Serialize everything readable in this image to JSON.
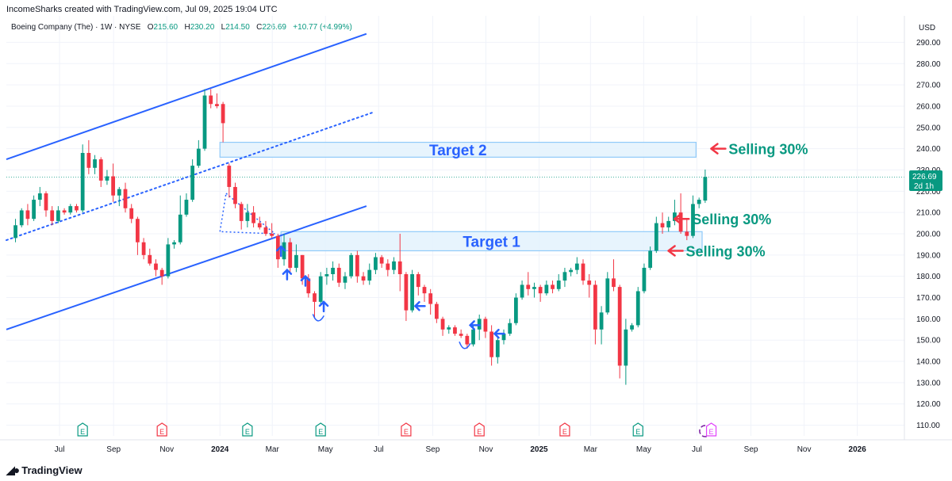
{
  "header": {
    "credit": "IncomeSharks created with TradingView.com, Jul 09, 2025 19:04 UTC"
  },
  "symbol": {
    "name": "Boeing Company (The) · 1W · NYSE",
    "open_label": "O",
    "open": "215.60",
    "high_label": "H",
    "high": "230.20",
    "low_label": "L",
    "low": "214.50",
    "close_label": "C",
    "close": "226.69",
    "change": "+10.77 (+4.99%)"
  },
  "currency": "USD",
  "price_tag": {
    "price": "226.69",
    "countdown": "2d 1h"
  },
  "footer": {
    "brand": "TradingView"
  },
  "colors": {
    "up": "#089981",
    "down": "#f23645",
    "channel": "#2962ff",
    "target_fill": "#e3f2fd",
    "target_border": "#90caf9",
    "annotation_blue": "#2962ff",
    "annotation_green": "#089981",
    "arrow_red": "#f23645"
  },
  "chart_data": {
    "type": "candlestick",
    "title": "Boeing Company (The) · 1W · NYSE",
    "y_axis": {
      "ylim": [
        105,
        295
      ],
      "ticks": [
        110,
        120,
        130,
        140,
        150,
        160,
        170,
        180,
        190,
        200,
        210,
        220,
        230,
        240,
        250,
        260,
        270,
        280,
        290
      ],
      "tick_labels": [
        "110.00",
        "120.00",
        "130.00",
        "140.00",
        "150.00",
        "160.00",
        "170.00",
        "180.00",
        "190.00",
        "200.00",
        "210.00",
        "220.00",
        "230.00",
        "240.00",
        "250.00",
        "260.00",
        "270.00",
        "280.00",
        "290.00"
      ],
      "side": "right"
    },
    "x_axis": {
      "tick_labels": [
        "Jul",
        "Sep",
        "Nov",
        "2024",
        "Mar",
        "May",
        "Jul",
        "Sep",
        "Nov",
        "2025",
        "Mar",
        "May",
        "Jul",
        "Sep",
        "Nov",
        "2026"
      ],
      "tick_dates": [
        "2023-07-01",
        "2023-09-01",
        "2023-11-01",
        "2024-01-01",
        "2024-03-01",
        "2024-05-01",
        "2024-07-01",
        "2024-09-01",
        "2024-11-01",
        "2025-01-01",
        "2025-03-01",
        "2025-05-01",
        "2025-07-01",
        "2025-09-01",
        "2025-11-01",
        "2026-01-01"
      ],
      "bold_labels": [
        "2024",
        "2025",
        "2026"
      ]
    },
    "candles": [
      {
        "d": "2023-05-08",
        "o": 198,
        "h": 207,
        "l": 196,
        "c": 204
      },
      {
        "d": "2023-05-15",
        "o": 204,
        "h": 212,
        "l": 203,
        "c": 211
      },
      {
        "d": "2023-05-22",
        "o": 211,
        "h": 214,
        "l": 204,
        "c": 207
      },
      {
        "d": "2023-05-29",
        "o": 207,
        "h": 218,
        "l": 206,
        "c": 216
      },
      {
        "d": "2023-06-05",
        "o": 216,
        "h": 222,
        "l": 213,
        "c": 219
      },
      {
        "d": "2023-06-12",
        "o": 219,
        "h": 220,
        "l": 208,
        "c": 211
      },
      {
        "d": "2023-06-19",
        "o": 211,
        "h": 213,
        "l": 204,
        "c": 206
      },
      {
        "d": "2023-06-26",
        "o": 206,
        "h": 213,
        "l": 205,
        "c": 211
      },
      {
        "d": "2023-07-03",
        "o": 211,
        "h": 212,
        "l": 209,
        "c": 210
      },
      {
        "d": "2023-07-10",
        "o": 210,
        "h": 214,
        "l": 209,
        "c": 213
      },
      {
        "d": "2023-07-17",
        "o": 213,
        "h": 214,
        "l": 210,
        "c": 211
      },
      {
        "d": "2023-07-24",
        "o": 211,
        "h": 242,
        "l": 210,
        "c": 238
      },
      {
        "d": "2023-07-31",
        "o": 238,
        "h": 244,
        "l": 228,
        "c": 231
      },
      {
        "d": "2023-08-07",
        "o": 231,
        "h": 237,
        "l": 228,
        "c": 235
      },
      {
        "d": "2023-08-14",
        "o": 235,
        "h": 236,
        "l": 222,
        "c": 225
      },
      {
        "d": "2023-08-21",
        "o": 225,
        "h": 230,
        "l": 223,
        "c": 227
      },
      {
        "d": "2023-08-28",
        "o": 227,
        "h": 233,
        "l": 215,
        "c": 218
      },
      {
        "d": "2023-09-04",
        "o": 218,
        "h": 222,
        "l": 213,
        "c": 221
      },
      {
        "d": "2023-09-11",
        "o": 221,
        "h": 224,
        "l": 210,
        "c": 212
      },
      {
        "d": "2023-09-18",
        "o": 212,
        "h": 214,
        "l": 205,
        "c": 207
      },
      {
        "d": "2023-09-25",
        "o": 207,
        "h": 208,
        "l": 190,
        "c": 196
      },
      {
        "d": "2023-10-02",
        "o": 196,
        "h": 198,
        "l": 188,
        "c": 190
      },
      {
        "d": "2023-10-09",
        "o": 190,
        "h": 193,
        "l": 185,
        "c": 186
      },
      {
        "d": "2023-10-16",
        "o": 186,
        "h": 188,
        "l": 180,
        "c": 183
      },
      {
        "d": "2023-10-23",
        "o": 183,
        "h": 184,
        "l": 176,
        "c": 180
      },
      {
        "d": "2023-10-30",
        "o": 180,
        "h": 198,
        "l": 179,
        "c": 195
      },
      {
        "d": "2023-11-06",
        "o": 195,
        "h": 197,
        "l": 193,
        "c": 196
      },
      {
        "d": "2023-11-13",
        "o": 196,
        "h": 218,
        "l": 195,
        "c": 209
      },
      {
        "d": "2023-11-20",
        "o": 209,
        "h": 219,
        "l": 208,
        "c": 216
      },
      {
        "d": "2023-11-27",
        "o": 216,
        "h": 235,
        "l": 215,
        "c": 232
      },
      {
        "d": "2023-12-04",
        "o": 232,
        "h": 244,
        "l": 231,
        "c": 240
      },
      {
        "d": "2023-12-11",
        "o": 240,
        "h": 268,
        "l": 239,
        "c": 265
      },
      {
        "d": "2023-12-18",
        "o": 265,
        "h": 268,
        "l": 259,
        "c": 261
      },
      {
        "d": "2023-12-25",
        "o": 261,
        "h": 266,
        "l": 259,
        "c": 260
      },
      {
        "d": "2024-01-01",
        "o": 261,
        "h": 262,
        "l": 243,
        "c": 252
      },
      {
        "d": "2024-01-08",
        "o": 232,
        "h": 233,
        "l": 217,
        "c": 222
      },
      {
        "d": "2024-01-15",
        "o": 222,
        "h": 224,
        "l": 212,
        "c": 214
      },
      {
        "d": "2024-01-22",
        "o": 214,
        "h": 215,
        "l": 202,
        "c": 206
      },
      {
        "d": "2024-01-29",
        "o": 206,
        "h": 214,
        "l": 203,
        "c": 210
      },
      {
        "d": "2024-02-05",
        "o": 210,
        "h": 213,
        "l": 203,
        "c": 205
      },
      {
        "d": "2024-02-12",
        "o": 205,
        "h": 208,
        "l": 202,
        "c": 203
      },
      {
        "d": "2024-02-19",
        "o": 203,
        "h": 206,
        "l": 199,
        "c": 200
      },
      {
        "d": "2024-02-26",
        "o": 200,
        "h": 205,
        "l": 198,
        "c": 199
      },
      {
        "d": "2024-03-04",
        "o": 199,
        "h": 200,
        "l": 184,
        "c": 188
      },
      {
        "d": "2024-03-11",
        "o": 188,
        "h": 200,
        "l": 185,
        "c": 196
      },
      {
        "d": "2024-03-18",
        "o": 196,
        "h": 198,
        "l": 182,
        "c": 184
      },
      {
        "d": "2024-03-25",
        "o": 184,
        "h": 195,
        "l": 182,
        "c": 190
      },
      {
        "d": "2024-04-01",
        "o": 190,
        "h": 190,
        "l": 176,
        "c": 179
      },
      {
        "d": "2024-04-08",
        "o": 179,
        "h": 181,
        "l": 170,
        "c": 172
      },
      {
        "d": "2024-04-15",
        "o": 172,
        "h": 173,
        "l": 160,
        "c": 168
      },
      {
        "d": "2024-04-22",
        "o": 168,
        "h": 182,
        "l": 167,
        "c": 180
      },
      {
        "d": "2024-04-29",
        "o": 180,
        "h": 184,
        "l": 176,
        "c": 181
      },
      {
        "d": "2024-05-06",
        "o": 181,
        "h": 187,
        "l": 178,
        "c": 184
      },
      {
        "d": "2024-05-13",
        "o": 184,
        "h": 186,
        "l": 175,
        "c": 177
      },
      {
        "d": "2024-05-20",
        "o": 177,
        "h": 182,
        "l": 174,
        "c": 180
      },
      {
        "d": "2024-05-27",
        "o": 180,
        "h": 191,
        "l": 179,
        "c": 190
      },
      {
        "d": "2024-06-03",
        "o": 190,
        "h": 192,
        "l": 177,
        "c": 180
      },
      {
        "d": "2024-06-10",
        "o": 180,
        "h": 182,
        "l": 176,
        "c": 178
      },
      {
        "d": "2024-06-17",
        "o": 178,
        "h": 186,
        "l": 176,
        "c": 183
      },
      {
        "d": "2024-06-24",
        "o": 183,
        "h": 191,
        "l": 181,
        "c": 189
      },
      {
        "d": "2024-07-01",
        "o": 189,
        "h": 190,
        "l": 184,
        "c": 186
      },
      {
        "d": "2024-07-08",
        "o": 186,
        "h": 188,
        "l": 180,
        "c": 183
      },
      {
        "d": "2024-07-15",
        "o": 183,
        "h": 189,
        "l": 181,
        "c": 187
      },
      {
        "d": "2024-07-22",
        "o": 187,
        "h": 200,
        "l": 173,
        "c": 181
      },
      {
        "d": "2024-07-29",
        "o": 181,
        "h": 182,
        "l": 159,
        "c": 164
      },
      {
        "d": "2024-08-05",
        "o": 164,
        "h": 183,
        "l": 163,
        "c": 181
      },
      {
        "d": "2024-08-12",
        "o": 181,
        "h": 182,
        "l": 171,
        "c": 175
      },
      {
        "d": "2024-08-19",
        "o": 175,
        "h": 176,
        "l": 168,
        "c": 172
      },
      {
        "d": "2024-08-26",
        "o": 172,
        "h": 174,
        "l": 162,
        "c": 167
      },
      {
        "d": "2024-09-02",
        "o": 167,
        "h": 168,
        "l": 158,
        "c": 160
      },
      {
        "d": "2024-09-09",
        "o": 160,
        "h": 161,
        "l": 152,
        "c": 155
      },
      {
        "d": "2024-09-16",
        "o": 155,
        "h": 157,
        "l": 153,
        "c": 156
      },
      {
        "d": "2024-09-23",
        "o": 156,
        "h": 157,
        "l": 152,
        "c": 153
      },
      {
        "d": "2024-09-30",
        "o": 153,
        "h": 155,
        "l": 151,
        "c": 152
      },
      {
        "d": "2024-10-07",
        "o": 152,
        "h": 153,
        "l": 146,
        "c": 148
      },
      {
        "d": "2024-10-14",
        "o": 148,
        "h": 157,
        "l": 147,
        "c": 155
      },
      {
        "d": "2024-10-21",
        "o": 155,
        "h": 162,
        "l": 150,
        "c": 160
      },
      {
        "d": "2024-10-28",
        "o": 160,
        "h": 161,
        "l": 151,
        "c": 154
      },
      {
        "d": "2024-11-04",
        "o": 154,
        "h": 157,
        "l": 138,
        "c": 142
      },
      {
        "d": "2024-11-11",
        "o": 142,
        "h": 152,
        "l": 139,
        "c": 150
      },
      {
        "d": "2024-11-18",
        "o": 150,
        "h": 155,
        "l": 148,
        "c": 153
      },
      {
        "d": "2024-11-25",
        "o": 153,
        "h": 160,
        "l": 152,
        "c": 158
      },
      {
        "d": "2024-12-02",
        "o": 158,
        "h": 172,
        "l": 157,
        "c": 170
      },
      {
        "d": "2024-12-09",
        "o": 170,
        "h": 178,
        "l": 169,
        "c": 176
      },
      {
        "d": "2024-12-16",
        "o": 176,
        "h": 182,
        "l": 171,
        "c": 174
      },
      {
        "d": "2024-12-23",
        "o": 174,
        "h": 177,
        "l": 170,
        "c": 175
      },
      {
        "d": "2024-12-30",
        "o": 175,
        "h": 176,
        "l": 168,
        "c": 172
      },
      {
        "d": "2025-01-06",
        "o": 172,
        "h": 178,
        "l": 171,
        "c": 176
      },
      {
        "d": "2025-01-13",
        "o": 176,
        "h": 178,
        "l": 172,
        "c": 174
      },
      {
        "d": "2025-01-20",
        "o": 174,
        "h": 181,
        "l": 173,
        "c": 178
      },
      {
        "d": "2025-01-27",
        "o": 178,
        "h": 184,
        "l": 175,
        "c": 182
      },
      {
        "d": "2025-02-03",
        "o": 182,
        "h": 184,
        "l": 180,
        "c": 183
      },
      {
        "d": "2025-02-10",
        "o": 183,
        "h": 189,
        "l": 181,
        "c": 186
      },
      {
        "d": "2025-02-17",
        "o": 186,
        "h": 188,
        "l": 176,
        "c": 178
      },
      {
        "d": "2025-02-24",
        "o": 178,
        "h": 181,
        "l": 170,
        "c": 176
      },
      {
        "d": "2025-03-03",
        "o": 176,
        "h": 178,
        "l": 148,
        "c": 155
      },
      {
        "d": "2025-03-10",
        "o": 155,
        "h": 166,
        "l": 148,
        "c": 163
      },
      {
        "d": "2025-03-17",
        "o": 163,
        "h": 182,
        "l": 162,
        "c": 179
      },
      {
        "d": "2025-03-24",
        "o": 179,
        "h": 188,
        "l": 173,
        "c": 175
      },
      {
        "d": "2025-03-31",
        "o": 175,
        "h": 176,
        "l": 132,
        "c": 138
      },
      {
        "d": "2025-04-07",
        "o": 138,
        "h": 160,
        "l": 129,
        "c": 155
      },
      {
        "d": "2025-04-14",
        "o": 155,
        "h": 158,
        "l": 154,
        "c": 157
      },
      {
        "d": "2025-04-21",
        "o": 157,
        "h": 175,
        "l": 156,
        "c": 173
      },
      {
        "d": "2025-04-28",
        "o": 173,
        "h": 186,
        "l": 172,
        "c": 184
      },
      {
        "d": "2025-05-05",
        "o": 184,
        "h": 194,
        "l": 183,
        "c": 192
      },
      {
        "d": "2025-05-12",
        "o": 192,
        "h": 208,
        "l": 191,
        "c": 205
      },
      {
        "d": "2025-05-19",
        "o": 205,
        "h": 210,
        "l": 200,
        "c": 203
      },
      {
        "d": "2025-05-26",
        "o": 203,
        "h": 208,
        "l": 201,
        "c": 206
      },
      {
        "d": "2025-06-02",
        "o": 206,
        "h": 216,
        "l": 204,
        "c": 210
      },
      {
        "d": "2025-06-09",
        "o": 210,
        "h": 219,
        "l": 200,
        "c": 201
      },
      {
        "d": "2025-06-16",
        "o": 201,
        "h": 207,
        "l": 197,
        "c": 199
      },
      {
        "d": "2025-06-23",
        "o": 199,
        "h": 218,
        "l": 198,
        "c": 214
      },
      {
        "d": "2025-06-30",
        "o": 214,
        "h": 217,
        "l": 212,
        "c": 216
      },
      {
        "d": "2025-07-07",
        "o": 215.6,
        "h": 230.2,
        "l": 214.5,
        "c": 226.69
      }
    ],
    "channel": {
      "upper": [
        [
          "2023-05-01",
          235
        ],
        [
          "2024-06-17",
          294
        ]
      ],
      "middle": [
        [
          "2023-05-01",
          197
        ],
        [
          "2024-06-24",
          257
        ]
      ],
      "lower": [
        [
          "2023-05-01",
          155
        ],
        [
          "2024-06-17",
          213
        ]
      ]
    },
    "dotted_triangle": [
      [
        "2024-01-08",
        219
      ],
      [
        "2024-03-04",
        200
      ],
      [
        "2024-01-01",
        201
      ]
    ],
    "targets": [
      {
        "label": "Target 2",
        "from": "2024-01-01",
        "to": "2025-06-30",
        "top": 243,
        "bottom": 236
      },
      {
        "label": "Target 1",
        "from": "2024-03-11",
        "to": "2025-07-07",
        "top": 201,
        "bottom": 192
      }
    ],
    "annotations": [
      {
        "text": "Selling 30%",
        "date": "2025-07-21",
        "price": 240
      },
      {
        "text": "Selling 30%",
        "date": "2025-06-09",
        "price": 207
      },
      {
        "text": "Selling 30%",
        "date": "2025-06-02",
        "price": 192
      }
    ],
    "events": [
      {
        "d": "2023-07-24",
        "kind": "E",
        "color": "green"
      },
      {
        "d": "2023-10-23",
        "kind": "E",
        "color": "red"
      },
      {
        "d": "2024-01-29",
        "kind": "E",
        "color": "green"
      },
      {
        "d": "2024-04-22",
        "kind": "E",
        "color": "green"
      },
      {
        "d": "2024-07-29",
        "kind": "E",
        "color": "red"
      },
      {
        "d": "2024-10-21",
        "kind": "E",
        "color": "red"
      },
      {
        "d": "2025-01-27",
        "kind": "E",
        "color": "red"
      },
      {
        "d": "2025-04-21",
        "kind": "E",
        "color": "green"
      },
      {
        "d": "2025-07-07",
        "kind": "split",
        "color": "purple"
      },
      {
        "d": "2025-07-14",
        "kind": "E",
        "color": "purple"
      }
    ]
  }
}
